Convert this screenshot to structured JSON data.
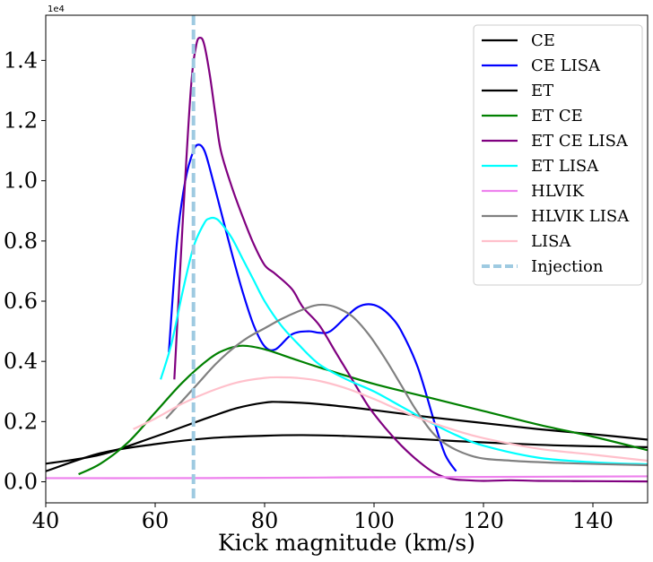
{
  "chart_data": {
    "type": "line",
    "title": "",
    "xlabel": "Kick magnitude (km/s)",
    "ylabel": "",
    "y_offset_label": "1e4",
    "xlim": [
      40,
      150
    ],
    "ylim": [
      -0.07,
      1.55
    ],
    "x_ticks": [
      40,
      60,
      80,
      100,
      120,
      140
    ],
    "y_ticks": [
      0.0,
      0.2,
      0.4,
      0.6,
      0.8,
      1.0,
      1.2,
      1.4
    ],
    "x_tick_labels": [
      "40",
      "60",
      "80",
      "100",
      "120",
      "140"
    ],
    "y_tick_labels": [
      "0.0",
      "0.2",
      "0.4",
      "0.6",
      "0.8",
      "1.0",
      "1.2",
      "1.4"
    ],
    "legend_position": "top-right",
    "injection": {
      "name": "Injection",
      "x": 67,
      "color": "#9ecae1"
    },
    "series": [
      {
        "name": "CE",
        "color": "#000000",
        "x": [
          40,
          50,
          60,
          70,
          80,
          87,
          95,
          105,
          115,
          130,
          140,
          150
        ],
        "y": [
          0.035,
          0.095,
          0.125,
          0.145,
          0.153,
          0.155,
          0.152,
          0.145,
          0.135,
          0.123,
          0.118,
          0.115
        ]
      },
      {
        "name": "CE LISA",
        "color": "#0000ff",
        "x": [
          62.5,
          64,
          65.5,
          67,
          68,
          69,
          70,
          72,
          74,
          76,
          78,
          80,
          82,
          85,
          88,
          90,
          92,
          95,
          97,
          99,
          101,
          103,
          105,
          108,
          111,
          113,
          115
        ],
        "y": [
          0.43,
          0.8,
          1.0,
          1.1,
          1.12,
          1.1,
          1.04,
          0.9,
          0.76,
          0.63,
          0.52,
          0.45,
          0.44,
          0.49,
          0.5,
          0.495,
          0.5,
          0.55,
          0.58,
          0.59,
          0.58,
          0.55,
          0.5,
          0.38,
          0.2,
          0.09,
          0.035
        ]
      },
      {
        "name": "ET",
        "color": "#000000",
        "x": [
          40,
          50,
          60,
          70,
          75,
          80,
          83,
          90,
          100,
          110,
          120,
          130,
          140,
          150
        ],
        "y": [
          0.06,
          0.09,
          0.15,
          0.215,
          0.245,
          0.263,
          0.265,
          0.258,
          0.238,
          0.215,
          0.195,
          0.175,
          0.158,
          0.14
        ]
      },
      {
        "name": "ET CE",
        "color": "#008000",
        "x": [
          46,
          50,
          55,
          60,
          65,
          70,
          73,
          76,
          80,
          85,
          90,
          100,
          110,
          120,
          130,
          140,
          150
        ],
        "y": [
          0.025,
          0.06,
          0.13,
          0.23,
          0.33,
          0.41,
          0.44,
          0.452,
          0.44,
          0.41,
          0.38,
          0.325,
          0.28,
          0.235,
          0.19,
          0.15,
          0.105
        ]
      },
      {
        "name": "ET CE LISA",
        "color": "#800080",
        "x": [
          63.5,
          65,
          66.5,
          67.5,
          68.3,
          69,
          70,
          71,
          72,
          74,
          76,
          78,
          80,
          82,
          85,
          87,
          90,
          93,
          96,
          99,
          102,
          105,
          108,
          111,
          114,
          117,
          120,
          125,
          130,
          140,
          150
        ],
        "y": [
          0.34,
          0.85,
          1.3,
          1.45,
          1.475,
          1.45,
          1.35,
          1.22,
          1.1,
          0.98,
          0.88,
          0.79,
          0.72,
          0.69,
          0.64,
          0.58,
          0.52,
          0.43,
          0.34,
          0.25,
          0.18,
          0.12,
          0.07,
          0.03,
          0.01,
          0.005,
          0.003,
          0.005,
          0.003,
          0.002,
          0.001
        ]
      },
      {
        "name": "ET LISA",
        "color": "#00ffff",
        "x": [
          61,
          63,
          65,
          67,
          69,
          70,
          71,
          72,
          74,
          76,
          78,
          80,
          83,
          86,
          90,
          95,
          100,
          105,
          110,
          115,
          120,
          130,
          140,
          150
        ],
        "y": [
          0.34,
          0.46,
          0.63,
          0.78,
          0.86,
          0.875,
          0.875,
          0.86,
          0.81,
          0.74,
          0.67,
          0.6,
          0.52,
          0.46,
          0.39,
          0.34,
          0.3,
          0.25,
          0.2,
          0.155,
          0.12,
          0.08,
          0.065,
          0.058
        ]
      },
      {
        "name": "HLVIK",
        "color": "#ee82ee",
        "x": [
          40,
          60,
          80,
          100,
          120,
          150
        ],
        "y": [
          0.012,
          0.012,
          0.013,
          0.015,
          0.016,
          0.018
        ]
      },
      {
        "name": "HLVIK LISA",
        "color": "#808080",
        "x": [
          62,
          65,
          68,
          71,
          74,
          77,
          80,
          83,
          86,
          89,
          91,
          93,
          96,
          99,
          102,
          105,
          108,
          112,
          118,
          125,
          135,
          150
        ],
        "y": [
          0.21,
          0.27,
          0.33,
          0.39,
          0.44,
          0.48,
          0.51,
          0.54,
          0.565,
          0.585,
          0.588,
          0.58,
          0.55,
          0.49,
          0.41,
          0.32,
          0.23,
          0.14,
          0.085,
          0.07,
          0.062,
          0.055
        ]
      },
      {
        "name": "LISA",
        "color": "#ffc0cb",
        "x": [
          56,
          60,
          65,
          70,
          75,
          80,
          83,
          86,
          90,
          95,
          100,
          105,
          110,
          115,
          120,
          130,
          140,
          150
        ],
        "y": [
          0.175,
          0.21,
          0.26,
          0.3,
          0.33,
          0.345,
          0.347,
          0.345,
          0.335,
          0.31,
          0.275,
          0.235,
          0.2,
          0.17,
          0.145,
          0.11,
          0.09,
          0.07
        ]
      }
    ]
  }
}
